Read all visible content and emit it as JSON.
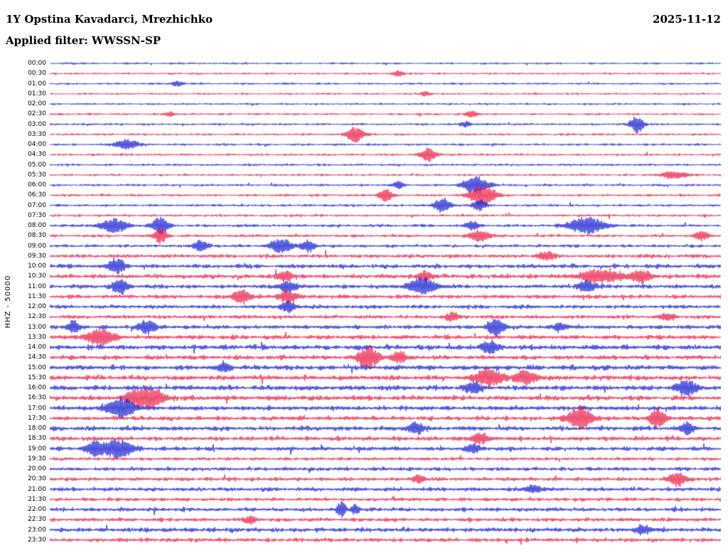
{
  "header": {
    "station_title": "1Y Opstina Kavadarci, Mrezhichko",
    "date": "2025-11-12",
    "filter_label": "Applied filter: WWSSN-SP"
  },
  "y_axis_label": "HHZ - 50000",
  "chart_data": {
    "type": "line",
    "subtype": "helicorder-dayplot",
    "title": "1Y Opstina Kavadarci, Mrezhichko",
    "date": "2025-11-12",
    "filter": "WWSSN-SP",
    "channel": "HHZ",
    "scale": 50000,
    "interval_minutes": 30,
    "x_range_per_row_minutes": [
      0,
      30
    ],
    "legend": "none",
    "grid": false,
    "trace_colors": {
      "even_rows": "#0912cd",
      "odd_rows": "#e8123c"
    },
    "units_note": {
      "x": "fraction of 30-minute row",
      "a": "burst half-amplitude in px",
      "w": "gaussian width fraction",
      "noise": "relative background noise level"
    },
    "rows": [
      {
        "label": "00:00",
        "color": "#0912cd",
        "noise": 0.9
      },
      {
        "label": "00:30",
        "color": "#e8123c",
        "noise": 0.9
      },
      {
        "label": "01:00",
        "color": "#0912cd",
        "noise": 0.9
      },
      {
        "label": "01:30",
        "color": "#e8123c",
        "noise": 0.9
      },
      {
        "label": "02:00",
        "color": "#0912cd",
        "noise": 0.9
      },
      {
        "label": "02:30",
        "color": "#e8123c",
        "noise": 0.95
      },
      {
        "label": "03:00",
        "color": "#0912cd",
        "noise": 1.0
      },
      {
        "label": "03:30",
        "color": "#e8123c",
        "noise": 1.0
      },
      {
        "label": "04:00",
        "color": "#0912cd",
        "noise": 1.0
      },
      {
        "label": "04:30",
        "color": "#e8123c",
        "noise": 1.0
      },
      {
        "label": "05:00",
        "color": "#0912cd",
        "noise": 1.0
      },
      {
        "label": "05:30",
        "color": "#e8123c",
        "noise": 1.0
      },
      {
        "label": "06:00",
        "color": "#0912cd",
        "noise": 1.05
      },
      {
        "label": "06:30",
        "color": "#e8123c",
        "noise": 1.1
      },
      {
        "label": "07:00",
        "color": "#0912cd",
        "noise": 1.1
      },
      {
        "label": "07:30",
        "color": "#e8123c",
        "noise": 1.15
      },
      {
        "label": "08:00",
        "color": "#0912cd",
        "noise": 1.3
      },
      {
        "label": "08:30",
        "color": "#e8123c",
        "noise": 1.3
      },
      {
        "label": "09:00",
        "color": "#0912cd",
        "noise": 1.35
      },
      {
        "label": "09:30",
        "color": "#e8123c",
        "noise": 1.7
      },
      {
        "label": "10:00",
        "color": "#0912cd",
        "noise": 1.85
      },
      {
        "label": "10:30",
        "color": "#e8123c",
        "noise": 2.0
      },
      {
        "label": "11:00",
        "color": "#0912cd",
        "noise": 1.8
      },
      {
        "label": "11:30",
        "color": "#e8123c",
        "noise": 1.8
      },
      {
        "label": "12:00",
        "color": "#0912cd",
        "noise": 1.7
      },
      {
        "label": "12:30",
        "color": "#e8123c",
        "noise": 1.7
      },
      {
        "label": "13:00",
        "color": "#0912cd",
        "noise": 1.8
      },
      {
        "label": "13:30",
        "color": "#e8123c",
        "noise": 1.9
      },
      {
        "label": "14:00",
        "color": "#0912cd",
        "noise": 2.2
      },
      {
        "label": "14:30",
        "color": "#e8123c",
        "noise": 2.0
      },
      {
        "label": "15:00",
        "color": "#0912cd",
        "noise": 2.2
      },
      {
        "label": "15:30",
        "color": "#e8123c",
        "noise": 2.2
      },
      {
        "label": "16:00",
        "color": "#0912cd",
        "noise": 2.2
      },
      {
        "label": "16:30",
        "color": "#e8123c",
        "noise": 2.2
      },
      {
        "label": "17:00",
        "color": "#0912cd",
        "noise": 2.0
      },
      {
        "label": "17:30",
        "color": "#e8123c",
        "noise": 2.0
      },
      {
        "label": "18:00",
        "color": "#0912cd",
        "noise": 2.0
      },
      {
        "label": "18:30",
        "color": "#e8123c",
        "noise": 2.0
      },
      {
        "label": "19:00",
        "color": "#0912cd",
        "noise": 1.9
      },
      {
        "label": "19:30",
        "color": "#e8123c",
        "noise": 1.5
      },
      {
        "label": "20:00",
        "color": "#0912cd",
        "noise": 1.7
      },
      {
        "label": "20:30",
        "color": "#e8123c",
        "noise": 1.7
      },
      {
        "label": "21:00",
        "color": "#0912cd",
        "noise": 1.8
      },
      {
        "label": "21:30",
        "color": "#e8123c",
        "noise": 1.6
      },
      {
        "label": "22:00",
        "color": "#0912cd",
        "noise": 1.8
      },
      {
        "label": "22:30",
        "color": "#e8123c",
        "noise": 1.7
      },
      {
        "label": "23:00",
        "color": "#0912cd",
        "noise": 2.0
      },
      {
        "label": "23:30",
        "color": "#e8123c",
        "noise": 1.8
      }
    ],
    "events": [
      {
        "r": 1,
        "x": 0.52,
        "w": 0.008,
        "a": 4
      },
      {
        "r": 2,
        "x": 0.19,
        "w": 0.008,
        "a": 4
      },
      {
        "r": 3,
        "x": 0.56,
        "w": 0.008,
        "a": 3
      },
      {
        "r": 5,
        "x": 0.18,
        "w": 0.008,
        "a": 3
      },
      {
        "r": 5,
        "x": 0.63,
        "w": 0.01,
        "a": 4
      },
      {
        "r": 6,
        "x": 0.62,
        "w": 0.008,
        "a": 4
      },
      {
        "r": 6,
        "x": 0.875,
        "w": 0.01,
        "a": 12
      },
      {
        "r": 7,
        "x": 0.455,
        "w": 0.012,
        "a": 11
      },
      {
        "r": 8,
        "x": 0.115,
        "w": 0.015,
        "a": 8
      },
      {
        "r": 9,
        "x": 0.565,
        "w": 0.012,
        "a": 9
      },
      {
        "r": 11,
        "x": 0.93,
        "w": 0.02,
        "a": 5
      },
      {
        "r": 12,
        "x": 0.52,
        "w": 0.008,
        "a": 5
      },
      {
        "r": 12,
        "x": 0.635,
        "w": 0.018,
        "a": 13
      },
      {
        "r": 13,
        "x": 0.5,
        "w": 0.01,
        "a": 9
      },
      {
        "r": 13,
        "x": 0.645,
        "w": 0.018,
        "a": 16
      },
      {
        "r": 14,
        "x": 0.585,
        "w": 0.012,
        "a": 10
      },
      {
        "r": 14,
        "x": 0.64,
        "w": 0.01,
        "a": 7
      },
      {
        "r": 16,
        "x": 0.095,
        "w": 0.02,
        "a": 9
      },
      {
        "r": 16,
        "x": 0.165,
        "w": 0.012,
        "a": 12
      },
      {
        "r": 16,
        "x": 0.63,
        "w": 0.01,
        "a": 6
      },
      {
        "r": 16,
        "x": 0.8,
        "w": 0.025,
        "a": 12
      },
      {
        "r": 17,
        "x": 0.165,
        "w": 0.01,
        "a": 10
      },
      {
        "r": 17,
        "x": 0.64,
        "w": 0.015,
        "a": 8
      },
      {
        "r": 17,
        "x": 0.97,
        "w": 0.01,
        "a": 6
      },
      {
        "r": 18,
        "x": 0.225,
        "w": 0.01,
        "a": 8
      },
      {
        "r": 18,
        "x": 0.345,
        "w": 0.015,
        "a": 11
      },
      {
        "r": 18,
        "x": 0.385,
        "w": 0.01,
        "a": 8
      },
      {
        "r": 19,
        "x": 0.74,
        "w": 0.012,
        "a": 6
      },
      {
        "r": 20,
        "x": 0.1,
        "w": 0.012,
        "a": 10
      },
      {
        "r": 21,
        "x": 0.35,
        "w": 0.01,
        "a": 7
      },
      {
        "r": 21,
        "x": 0.56,
        "w": 0.01,
        "a": 7
      },
      {
        "r": 21,
        "x": 0.82,
        "w": 0.03,
        "a": 9
      },
      {
        "r": 21,
        "x": 0.88,
        "w": 0.015,
        "a": 8
      },
      {
        "r": 22,
        "x": 0.105,
        "w": 0.012,
        "a": 9
      },
      {
        "r": 22,
        "x": 0.355,
        "w": 0.012,
        "a": 8
      },
      {
        "r": 22,
        "x": 0.555,
        "w": 0.02,
        "a": 12
      },
      {
        "r": 22,
        "x": 0.8,
        "w": 0.012,
        "a": 8
      },
      {
        "r": 23,
        "x": 0.285,
        "w": 0.012,
        "a": 11
      },
      {
        "r": 23,
        "x": 0.355,
        "w": 0.012,
        "a": 9
      },
      {
        "r": 24,
        "x": 0.355,
        "w": 0.01,
        "a": 9
      },
      {
        "r": 25,
        "x": 0.6,
        "w": 0.01,
        "a": 5
      },
      {
        "r": 25,
        "x": 0.92,
        "w": 0.01,
        "a": 5
      },
      {
        "r": 26,
        "x": 0.035,
        "w": 0.01,
        "a": 8
      },
      {
        "r": 26,
        "x": 0.145,
        "w": 0.012,
        "a": 10
      },
      {
        "r": 26,
        "x": 0.665,
        "w": 0.012,
        "a": 12
      },
      {
        "r": 26,
        "x": 0.76,
        "w": 0.01,
        "a": 6
      },
      {
        "r": 27,
        "x": 0.075,
        "w": 0.02,
        "a": 12
      },
      {
        "r": 28,
        "x": 0.655,
        "w": 0.012,
        "a": 8
      },
      {
        "r": 29,
        "x": 0.475,
        "w": 0.015,
        "a": 16
      },
      {
        "r": 29,
        "x": 0.52,
        "w": 0.01,
        "a": 8
      },
      {
        "r": 30,
        "x": 0.26,
        "w": 0.01,
        "a": 6
      },
      {
        "r": 31,
        "x": 0.655,
        "w": 0.02,
        "a": 12
      },
      {
        "r": 31,
        "x": 0.71,
        "w": 0.015,
        "a": 10
      },
      {
        "r": 32,
        "x": 0.63,
        "w": 0.012,
        "a": 7
      },
      {
        "r": 32,
        "x": 0.95,
        "w": 0.015,
        "a": 10
      },
      {
        "r": 33,
        "x": 0.135,
        "w": 0.02,
        "a": 13
      },
      {
        "r": 33,
        "x": 0.16,
        "w": 0.012,
        "a": 10
      },
      {
        "r": 34,
        "x": 0.105,
        "w": 0.02,
        "a": 14
      },
      {
        "r": 35,
        "x": 0.79,
        "w": 0.018,
        "a": 16
      },
      {
        "r": 35,
        "x": 0.905,
        "w": 0.012,
        "a": 12
      },
      {
        "r": 36,
        "x": 0.545,
        "w": 0.012,
        "a": 8
      },
      {
        "r": 36,
        "x": 0.95,
        "w": 0.01,
        "a": 7
      },
      {
        "r": 37,
        "x": 0.64,
        "w": 0.012,
        "a": 7
      },
      {
        "r": 38,
        "x": 0.065,
        "w": 0.012,
        "a": 8
      },
      {
        "r": 38,
        "x": 0.1,
        "w": 0.022,
        "a": 13
      },
      {
        "r": 38,
        "x": 0.63,
        "w": 0.01,
        "a": 6
      },
      {
        "r": 41,
        "x": 0.55,
        "w": 0.01,
        "a": 5
      },
      {
        "r": 41,
        "x": 0.935,
        "w": 0.012,
        "a": 10
      },
      {
        "r": 42,
        "x": 0.72,
        "w": 0.01,
        "a": 6
      },
      {
        "r": 44,
        "x": 0.435,
        "w": 0.006,
        "a": 10
      },
      {
        "r": 44,
        "x": 0.455,
        "w": 0.006,
        "a": 7
      },
      {
        "r": 45,
        "x": 0.3,
        "w": 0.008,
        "a": 5
      },
      {
        "r": 46,
        "x": 0.885,
        "w": 0.012,
        "a": 6
      }
    ]
  }
}
